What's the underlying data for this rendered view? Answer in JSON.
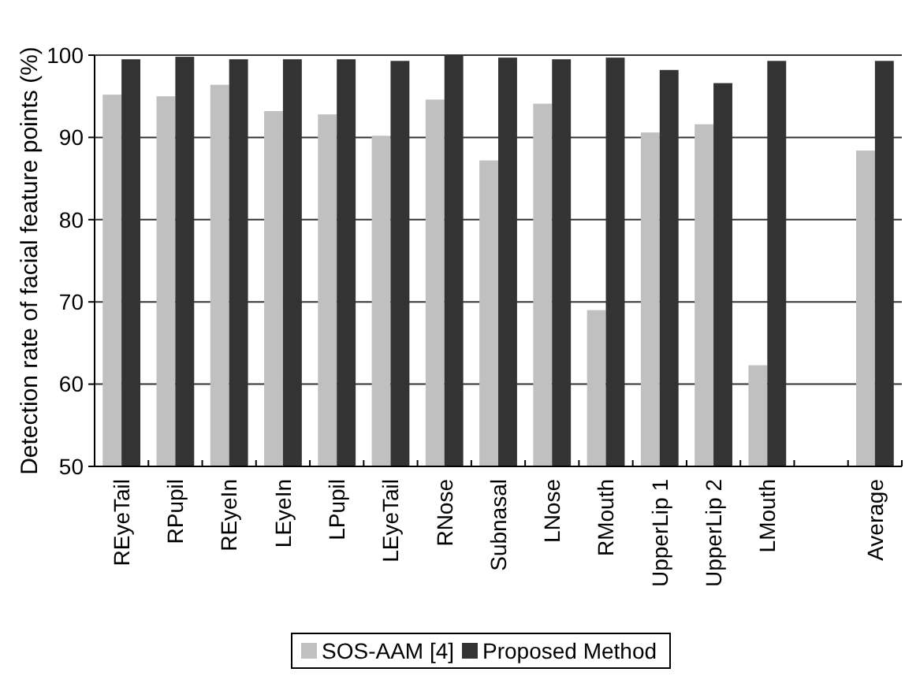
{
  "chart_data": {
    "type": "bar",
    "ylabel": "Detection rate of facial feature points (%)",
    "categories": [
      "REyeTail",
      "RPupil",
      "REyeIn",
      "LEyeIn",
      "LPupil",
      "LEyeTail",
      "RNose",
      "Subnasal",
      "LNose",
      "RMouth",
      "UpperLip 1",
      "UpperLip 2",
      "LMouth",
      null,
      "Average"
    ],
    "series": [
      {
        "name": "SOS-AAM [4]",
        "color": "#c0c0c0",
        "values": [
          95.2,
          95,
          96.4,
          93.2,
          92.8,
          90.2,
          94.6,
          87.2,
          94.1,
          69,
          90.6,
          91.6,
          62.3,
          null,
          88.4
        ]
      },
      {
        "name": "Proposed Method",
        "color": "#333333",
        "values": [
          99.5,
          99.8,
          99.5,
          99.5,
          99.5,
          99.3,
          100,
          99.7,
          99.5,
          99.7,
          98.2,
          96.6,
          99.3,
          null,
          99.3
        ]
      }
    ],
    "ylim": [
      50,
      100
    ],
    "yticks": [
      50,
      60,
      70,
      80,
      90,
      100
    ],
    "grid": "y",
    "legend": "bottom"
  }
}
